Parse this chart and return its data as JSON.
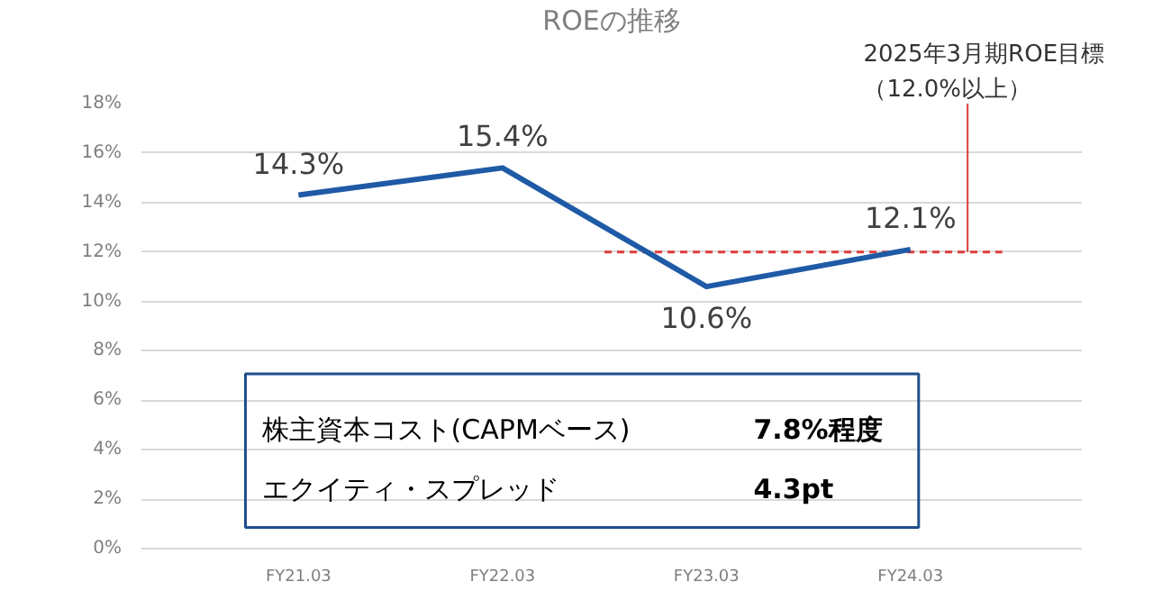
{
  "chart_data": {
    "type": "line",
    "title": "ROEの推移",
    "categories": [
      "FY21.03",
      "FY22.03",
      "FY23.03",
      "FY24.03"
    ],
    "series": [
      {
        "color": "#1f5aa6",
        "values": [
          14.3,
          15.4,
          10.6,
          12.1
        ],
        "value_labels": [
          "14.3%",
          "15.4%",
          "10.6%",
          "12.1%"
        ]
      }
    ],
    "ylim": [
      0,
      18
    ],
    "yticks": [
      {
        "value": 0,
        "label": "0%"
      },
      {
        "value": 2,
        "label": "2%"
      },
      {
        "value": 4,
        "label": "4%"
      },
      {
        "value": 6,
        "label": "6%"
      },
      {
        "value": 8,
        "label": "8%"
      },
      {
        "value": 10,
        "label": "10%"
      },
      {
        "value": 12,
        "label": "12%"
      },
      {
        "value": 14,
        "label": "14%"
      },
      {
        "value": 16,
        "label": "16%"
      },
      {
        "value": 18,
        "label": "18%"
      }
    ],
    "grid": "y",
    "marker": "none",
    "line_style": "solid",
    "ref_lines": [
      {
        "axis": "y",
        "value": 12,
        "label": "2025年3月期ROE目標（12.0%以上）",
        "color": "#e03c3c",
        "line_style": "dashed"
      }
    ],
    "annotations": [
      "株主資本コスト(CAPMベース)",
      "7.8%程度",
      "エクイティ・スプレッド",
      "4.3pt"
    ]
  }
}
